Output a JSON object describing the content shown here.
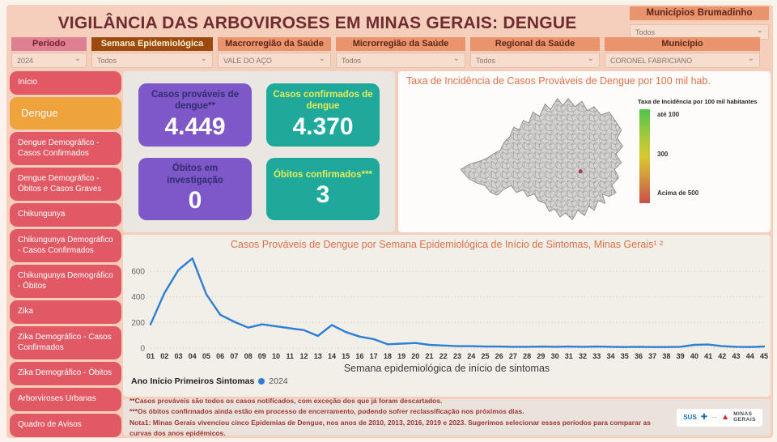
{
  "header": {
    "title": "VIGILÂNCIA DAS ARBOVIROSES EM MINAS GERAIS: DENGUE",
    "brumadinho_label": "Municípios Brumadinho",
    "brumadinho_value": "Todos"
  },
  "icons": {
    "chevron_down": "⌄",
    "sus_cross": "✚",
    "mg_triangle": "▲"
  },
  "filters": [
    {
      "name": "periodo",
      "label": "Período",
      "value": "2024",
      "style": "pink"
    },
    {
      "name": "semana-epidemiologica",
      "label": "Semana Epidemiológica",
      "value": "Todos",
      "style": "brown"
    },
    {
      "name": "macrorregiao-saude",
      "label": "Macrorregião da Saúde",
      "value": "VALE DO AÇO",
      "style": "orange"
    },
    {
      "name": "microrregiao-saude",
      "label": "Microrregião da Saúde",
      "value": "Todos",
      "style": "orange"
    },
    {
      "name": "regional-saude",
      "label": "Regional da Saúde",
      "value": "Todos",
      "style": "orange"
    },
    {
      "name": "municipio",
      "label": "Município",
      "value": "CORONEL FABRICIANO",
      "style": "orange"
    }
  ],
  "sidebar": {
    "items": [
      {
        "name": "inicio",
        "label": "Início",
        "active": false,
        "two_line": false
      },
      {
        "name": "dengue",
        "label": "Dengue",
        "active": true,
        "two_line": false
      },
      {
        "name": "dengue-demografico-casos-confirmados",
        "label": "Dengue Demográfico - Casos Confirmados",
        "active": false,
        "two_line": true
      },
      {
        "name": "dengue-demografico-obitos-e-casos-graves",
        "label": "Dengue Demográfico - Óbitos e Casos Graves",
        "active": false,
        "two_line": true
      },
      {
        "name": "chikungunya",
        "label": "Chikungunya",
        "active": false,
        "two_line": false
      },
      {
        "name": "chikungunya-demografico-casos-confirmados",
        "label": "Chikungunya Demográfico - Casos Confirmados",
        "active": false,
        "two_line": true
      },
      {
        "name": "chikungunya-demografico-obitos",
        "label": "Chikungunya Demográfico - Óbitos",
        "active": false,
        "two_line": true
      },
      {
        "name": "zika",
        "label": "Zika",
        "active": false,
        "two_line": false
      },
      {
        "name": "zika-demografico-casos-confirmados",
        "label": "Zika Demográfico - Casos Confirmados",
        "active": false,
        "two_line": true
      },
      {
        "name": "zika-demografico-obitos",
        "label": "Zika Demográfico - Óbitos",
        "active": false,
        "two_line": false
      },
      {
        "name": "arborviroses-urbanas",
        "label": "Arborviroses Urbanas",
        "active": false,
        "two_line": false
      },
      {
        "name": "quadro-de-avisos",
        "label": "Quadro de Avisos",
        "active": false,
        "two_line": false
      }
    ]
  },
  "kpis": [
    {
      "name": "casos-provaveis",
      "title": "Casos prováveis de dengue**",
      "value": "4.449",
      "color": "purple"
    },
    {
      "name": "casos-confirmados",
      "title": "Casos confirmados de dengue",
      "value": "4.370",
      "color": "teal"
    },
    {
      "name": "obitos-em-investigacao",
      "title": "Óbitos em investigação",
      "value": "0",
      "color": "purple"
    },
    {
      "name": "obitos-confirmados",
      "title": "Óbitos confirmados***",
      "value": "3",
      "color": "teal"
    }
  ],
  "map_panel": {
    "title": "Taxa de Incidência de Casos Prováveis de Dengue por 100 mil hab.",
    "legend_title": "Taxa de Incidência por 100 mil habitantes",
    "legend_labels": [
      "até 100",
      "300",
      "Acima de 500"
    ],
    "fill_color": "#d4d2d0",
    "border_color": "#828282",
    "highlight_color": "#a93a4e"
  },
  "chart_data": {
    "type": "line",
    "title": "Casos Prováveis de Dengue por Semana Epidemiológica de Início de Sintomas, Minas Gerais¹ ²",
    "xlabel": "Semana epidemiológica de início de sintomas",
    "legend_label": "Ano Início Primeiros Sintomas",
    "legend_position": "bottom-left",
    "grid": true,
    "ylim": [
      0,
      720
    ],
    "yticks": [
      0,
      200,
      400,
      600
    ],
    "categories": [
      "01",
      "02",
      "03",
      "04",
      "05",
      "06",
      "07",
      "08",
      "09",
      "10",
      "11",
      "12",
      "13",
      "14",
      "15",
      "16",
      "17",
      "18",
      "19",
      "20",
      "21",
      "22",
      "23",
      "24",
      "25",
      "26",
      "27",
      "28",
      "29",
      "30",
      "31",
      "32",
      "33",
      "34",
      "35",
      "36",
      "37",
      "38",
      "39",
      "40",
      "41",
      "42",
      "43",
      "44",
      "45"
    ],
    "series": [
      {
        "name": "2024",
        "color": "#2d7fd3",
        "values": [
          185,
          430,
          610,
          700,
          420,
          260,
          205,
          160,
          185,
          170,
          155,
          140,
          95,
          180,
          125,
          90,
          70,
          30,
          35,
          40,
          25,
          20,
          15,
          15,
          12,
          12,
          10,
          10,
          12,
          10,
          12,
          10,
          12,
          10,
          8,
          10,
          8,
          8,
          10,
          25,
          28,
          15,
          10,
          8,
          12
        ]
      }
    ]
  },
  "footer": {
    "note1": "**Casos prováveis são todos os casos notificados, com exceção dos que já foram descartados.",
    "note2": "***Os óbitos confirmados ainda estão em processo de encerramento, podendo sofrer reclassificação nos próximos dias.",
    "note3": "Nota1: Minas Gerais vivenciou cinco Epidemias de Dengue, nos anos de 2010, 2013, 2016, 2019 e 2023. Sugerimos selecionar esses períodos para comparar as curvas dos anos epidêmicos.",
    "logo_sus": "SUS",
    "logo_mg_line1": "MINAS",
    "logo_mg_line2": "GERAIS"
  }
}
